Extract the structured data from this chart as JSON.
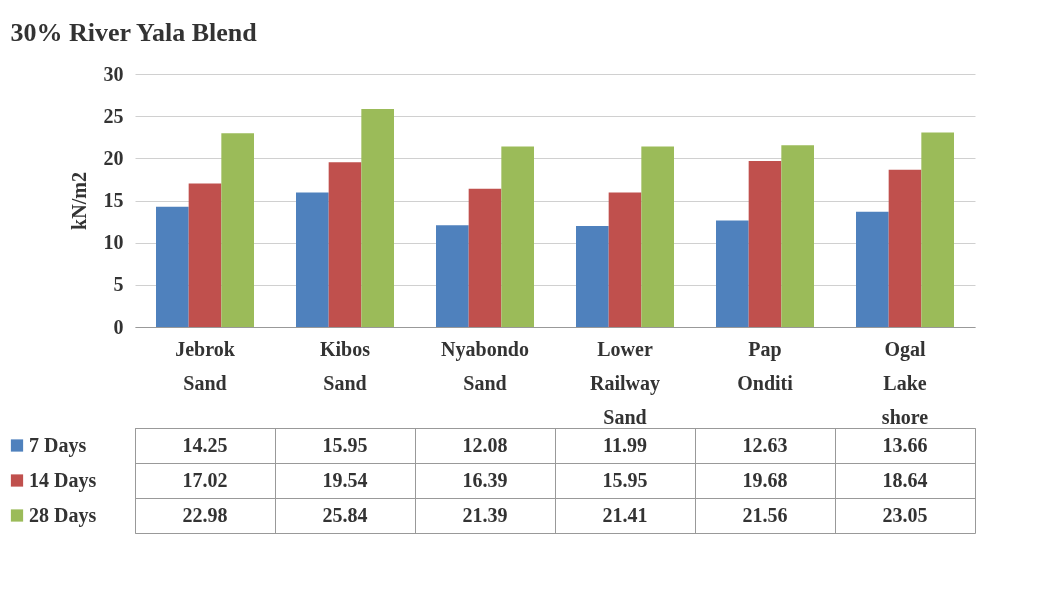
{
  "chart_data": {
    "type": "bar",
    "title": "30% River Yala Blend",
    "ylabel": "kN/m2",
    "categories": [
      "Jebrok Sand",
      "Kibos Sand",
      "Nyabondo Sand",
      "Lower Railway Sand",
      "Pap Onditi",
      "Ogal Lake shore"
    ],
    "series": [
      {
        "name": "7 Days",
        "color": "#4f81bd",
        "values": [
          14.25,
          15.95,
          12.08,
          11.99,
          12.63,
          13.66
        ]
      },
      {
        "name": "14 Days",
        "color": "#c0504d",
        "values": [
          17.02,
          19.54,
          16.39,
          15.95,
          19.68,
          18.64
        ]
      },
      {
        "name": "28 Days",
        "color": "#9bbb59",
        "values": [
          22.98,
          25.84,
          21.39,
          21.41,
          21.56,
          23.05
        ]
      }
    ],
    "ylim": [
      0,
      30
    ],
    "yticks": [
      0,
      5,
      10,
      15,
      20,
      25,
      30
    ],
    "grid": "y",
    "legend": "bottom left",
    "data_labels": true
  }
}
